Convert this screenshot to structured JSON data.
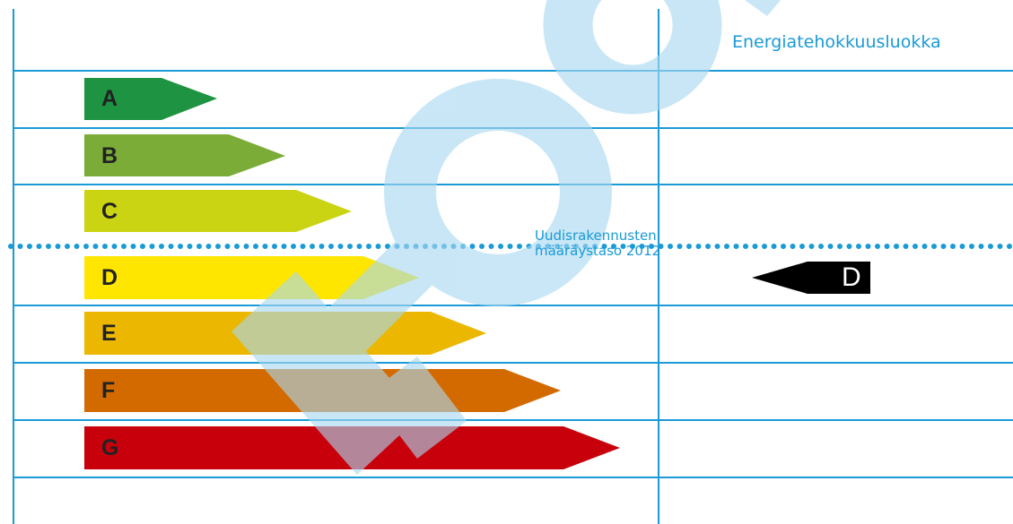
{
  "header": {
    "title": "Energiatehokkuusluokka"
  },
  "classes": [
    {
      "letter": "A",
      "color": "#1e9442"
    },
    {
      "letter": "B",
      "color": "#7bac38"
    },
    {
      "letter": "C",
      "color": "#cbd412"
    },
    {
      "letter": "D",
      "color": "#fee600"
    },
    {
      "letter": "E",
      "color": "#ebb700"
    },
    {
      "letter": "F",
      "color": "#d36a00"
    },
    {
      "letter": "G",
      "color": "#c8000b"
    }
  ],
  "regulation_level": {
    "line1": "Uudisrakennusten",
    "line2": "määräystaso 2012",
    "color": "#1a9ad6"
  },
  "rating": {
    "letter": "D",
    "color": "#000000"
  },
  "watermark": {
    "text": "koo",
    "color": "#a8d8f0"
  },
  "grid_color": "#1a9ad6"
}
